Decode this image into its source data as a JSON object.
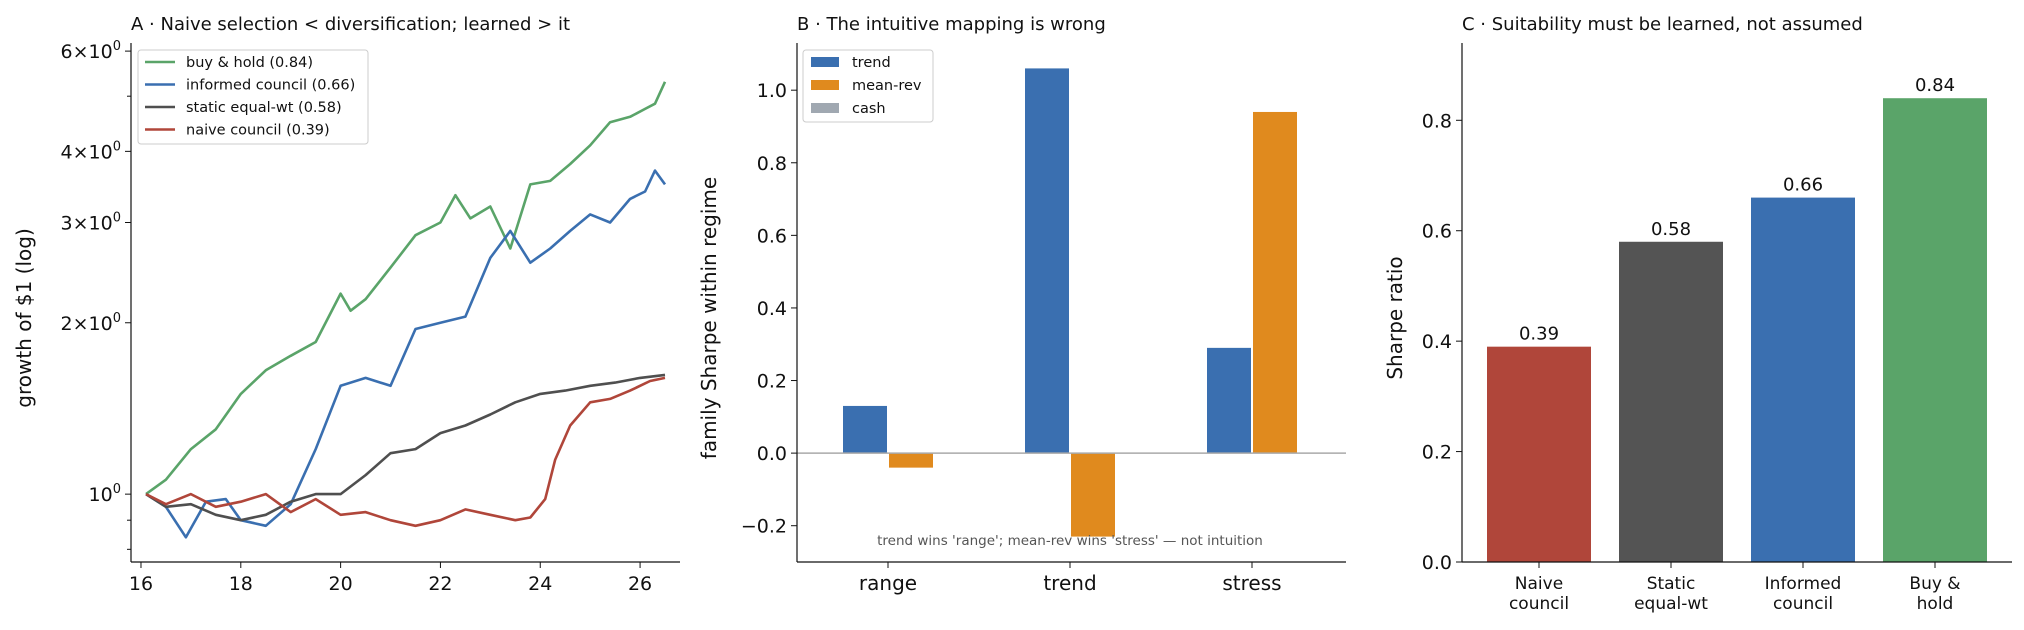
{
  "chart_data": [
    {
      "type": "line",
      "title": "A · Naive selection < diversification; learned > it",
      "xlabel": "",
      "ylabel": "growth of $1 (log)",
      "yscale": "log",
      "xlim": [
        15.8,
        26.8
      ],
      "ylim": [
        0.76,
        6.2
      ],
      "x_ticks": [
        16,
        18,
        20,
        22,
        24,
        26
      ],
      "y_ticks": [
        {
          "value": 1,
          "label": "10^0"
        },
        {
          "value": 2,
          "label": "2×10^0"
        },
        {
          "value": 3,
          "label": "3×10^0"
        },
        {
          "value": 4,
          "label": "4×10^0"
        },
        {
          "value": 6,
          "label": "6×10^0"
        }
      ],
      "legend": "top-left",
      "series": [
        {
          "name": "buy & hold (0.84)",
          "color": "#5aa469",
          "x": [
            16.1,
            16.5,
            17.0,
            17.5,
            18.0,
            18.5,
            19.0,
            19.5,
            20.0,
            20.2,
            20.5,
            21.0,
            21.5,
            22.0,
            22.3,
            22.6,
            23.0,
            23.4,
            23.8,
            24.2,
            24.6,
            25.0,
            25.4,
            25.8,
            26.1,
            26.3,
            26.5
          ],
          "y": [
            1.0,
            1.06,
            1.2,
            1.3,
            1.5,
            1.65,
            1.75,
            1.85,
            2.25,
            2.1,
            2.2,
            2.5,
            2.85,
            3.0,
            3.35,
            3.05,
            3.2,
            2.7,
            3.5,
            3.55,
            3.8,
            4.1,
            4.5,
            4.6,
            4.75,
            4.85,
            5.3
          ]
        },
        {
          "name": "informed council (0.66)",
          "color": "#3a6fb0",
          "x": [
            16.1,
            16.5,
            16.9,
            17.3,
            17.7,
            18.0,
            18.5,
            19.0,
            19.5,
            20.0,
            20.5,
            21.0,
            21.5,
            22.0,
            22.5,
            23.0,
            23.4,
            23.8,
            24.2,
            24.6,
            25.0,
            25.4,
            25.8,
            26.1,
            26.3,
            26.5
          ],
          "y": [
            1.0,
            0.95,
            0.84,
            0.97,
            0.98,
            0.9,
            0.88,
            0.96,
            1.2,
            1.55,
            1.6,
            1.55,
            1.95,
            2.0,
            2.05,
            2.6,
            2.9,
            2.55,
            2.7,
            2.9,
            3.1,
            3.0,
            3.3,
            3.4,
            3.7,
            3.5
          ]
        },
        {
          "name": "static equal-wt (0.58)",
          "color": "#4f4f4f",
          "x": [
            16.1,
            16.5,
            17.0,
            17.5,
            18.0,
            18.5,
            19.0,
            19.5,
            20.0,
            20.5,
            21.0,
            21.5,
            22.0,
            22.5,
            23.0,
            23.5,
            24.0,
            24.5,
            25.0,
            25.5,
            26.0,
            26.5
          ],
          "y": [
            1.0,
            0.95,
            0.96,
            0.92,
            0.9,
            0.92,
            0.97,
            1.0,
            1.0,
            1.08,
            1.18,
            1.2,
            1.28,
            1.32,
            1.38,
            1.45,
            1.5,
            1.52,
            1.55,
            1.57,
            1.6,
            1.62
          ]
        },
        {
          "name": "naive council (0.39)",
          "color": "#b0463a",
          "x": [
            16.1,
            16.5,
            17.0,
            17.5,
            18.0,
            18.5,
            19.0,
            19.5,
            20.0,
            20.5,
            21.0,
            21.5,
            22.0,
            22.5,
            23.0,
            23.5,
            23.8,
            24.1,
            24.3,
            24.6,
            25.0,
            25.4,
            25.8,
            26.2,
            26.5
          ],
          "y": [
            1.0,
            0.96,
            1.0,
            0.95,
            0.97,
            1.0,
            0.93,
            0.98,
            0.92,
            0.93,
            0.9,
            0.88,
            0.9,
            0.94,
            0.92,
            0.9,
            0.91,
            0.98,
            1.15,
            1.32,
            1.45,
            1.47,
            1.52,
            1.58,
            1.6
          ]
        }
      ]
    },
    {
      "type": "bar",
      "title": "B · The intuitive mapping is wrong",
      "xlabel": "",
      "ylabel": "family Sharpe within regime",
      "categories": [
        "range",
        "trend",
        "stress"
      ],
      "ylim": [
        -0.3,
        1.13
      ],
      "y_ticks": [
        -0.2,
        0.0,
        0.2,
        0.4,
        0.6,
        0.8,
        1.0
      ],
      "legend": "top-left",
      "series": [
        {
          "name": "trend",
          "color": "#3a6fb0",
          "values": [
            0.13,
            1.06,
            0.29
          ]
        },
        {
          "name": "mean-rev",
          "color": "#e08a1e",
          "values": [
            -0.04,
            -0.23,
            0.94
          ]
        },
        {
          "name": "cash",
          "color": "#a0a8b1",
          "values": [
            0.0,
            0.0,
            0.0
          ]
        }
      ],
      "annotation": "trend wins 'range'; mean-rev wins 'stress' — not intuition"
    },
    {
      "type": "bar",
      "title": "C · Suitability must be learned, not assumed",
      "xlabel": "",
      "ylabel": "Sharpe ratio",
      "categories": [
        [
          "Naive",
          "council"
        ],
        [
          "Static",
          "equal-wt"
        ],
        [
          "Informed",
          "council"
        ],
        [
          "Buy &",
          "hold"
        ]
      ],
      "values": [
        0.39,
        0.58,
        0.66,
        0.84
      ],
      "value_labels": [
        "0.39",
        "0.58",
        "0.66",
        "0.84"
      ],
      "colors": [
        "#b0463a",
        "#545454",
        "#3a6fb0",
        "#5aa469"
      ],
      "ylim": [
        0,
        0.94
      ],
      "y_ticks": [
        0.0,
        0.2,
        0.4,
        0.6,
        0.8
      ]
    }
  ]
}
